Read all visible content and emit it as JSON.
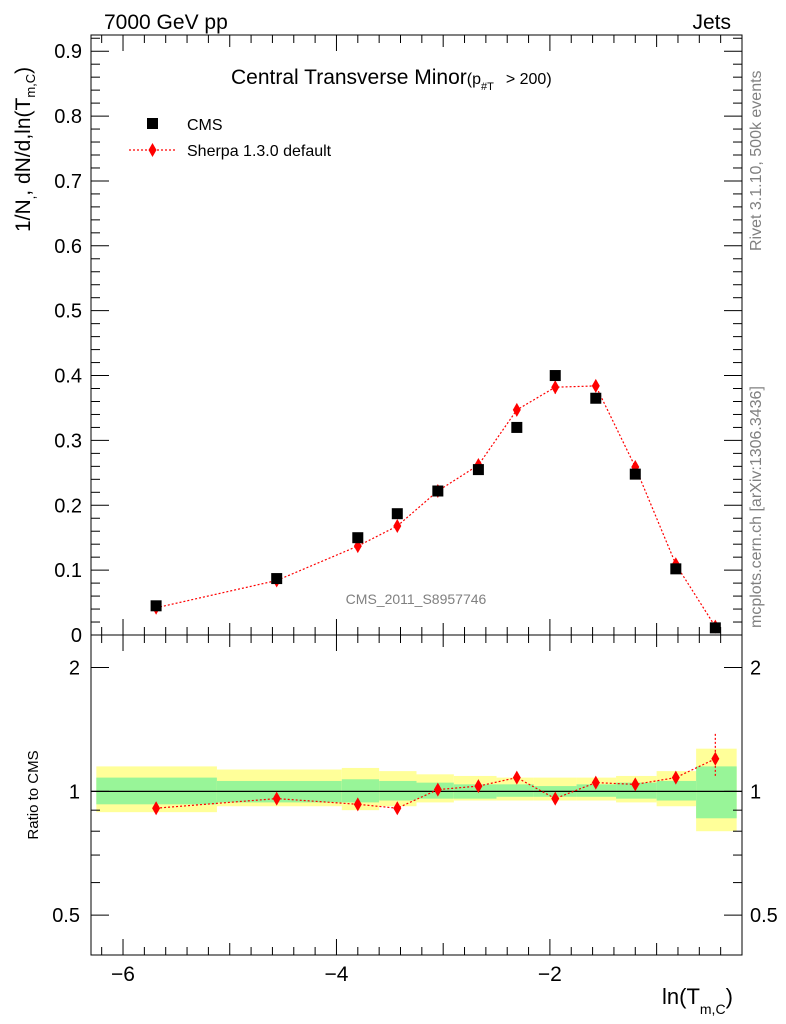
{
  "header": {
    "energy_label": "7000 GeV pp",
    "process_label": "Jets"
  },
  "side_text": {
    "rivet": "Rivet 3.1.10,  500k events",
    "mcplots": "mcplots.cern.ch [arXiv:1306.3436]"
  },
  "chart_data": {
    "type": "scatter",
    "title_main": "Central Transverse Minor",
    "title_cut_prefix": "(p",
    "title_cut_sub": "#T",
    "title_cut_suffix": "> 200)",
    "watermark": "CMS_2011_S8957746",
    "ylabel": {
      "main": "1/N",
      "sub1": ",",
      "mid": ", dN/d,ln(T",
      "sub2": "m,C",
      "end": ")"
    },
    "xlabel": {
      "main": "ln(T",
      "sub": "m,C",
      "end": ")"
    },
    "xlim": [
      -6.3,
      -0.2
    ],
    "ylim": [
      0,
      0.925
    ],
    "x_ticks": [
      {
        "v": -6,
        "label": "−6"
      },
      {
        "v": -4,
        "label": "−4"
      },
      {
        "v": -2,
        "label": "−2"
      }
    ],
    "y_ticks": [
      {
        "v": 0,
        "label": "0"
      },
      {
        "v": 0.1,
        "label": "0.1"
      },
      {
        "v": 0.2,
        "label": "0.2"
      },
      {
        "v": 0.3,
        "label": "0.3"
      },
      {
        "v": 0.4,
        "label": "0.4"
      },
      {
        "v": 0.5,
        "label": "0.5"
      },
      {
        "v": 0.6,
        "label": "0.6"
      },
      {
        "v": 0.7,
        "label": "0.7"
      },
      {
        "v": 0.8,
        "label": "0.8"
      },
      {
        "v": 0.9,
        "label": "0.9"
      }
    ],
    "series": [
      {
        "name": "CMS",
        "color": "#000000",
        "x": [
          -5.69,
          -4.56,
          -3.8,
          -3.43,
          -3.05,
          -2.67,
          -2.31,
          -1.95,
          -1.57,
          -1.2,
          -0.82,
          -0.45
        ],
        "y": [
          0.045,
          0.087,
          0.15,
          0.187,
          0.222,
          0.255,
          0.32,
          0.4,
          0.365,
          0.248,
          0.102,
          0.011
        ]
      },
      {
        "name": "Sherpa 1.3.0 default",
        "color": "#ff0000",
        "x": [
          -5.69,
          -4.56,
          -3.8,
          -3.43,
          -3.05,
          -2.67,
          -2.31,
          -1.95,
          -1.57,
          -1.2,
          -0.82,
          -0.45
        ],
        "y": [
          0.042,
          0.084,
          0.137,
          0.168,
          0.222,
          0.262,
          0.347,
          0.382,
          0.384,
          0.259,
          0.109,
          0.013
        ],
        "err": [
          0.002,
          0.002,
          0.005,
          0.005,
          0.004,
          0.006,
          0.009,
          0.01,
          0.008,
          0.006,
          0.006,
          0.006
        ]
      }
    ],
    "ratio": {
      "ylabel": "Ratio to CMS",
      "ylim_log": [
        0.4,
        2.4
      ],
      "y_ticks": [
        {
          "v": 0.5,
          "label": "0.5"
        },
        {
          "v": 1,
          "label": "1"
        },
        {
          "v": 2,
          "label": "2"
        }
      ],
      "bins": [
        {
          "lo": -6.25,
          "hi": -5.12,
          "inner": [
            0.93,
            1.08
          ],
          "outer": [
            0.89,
            1.15
          ]
        },
        {
          "lo": -5.12,
          "hi": -3.95,
          "inner": [
            0.94,
            1.06
          ],
          "outer": [
            0.92,
            1.13
          ]
        },
        {
          "lo": -3.95,
          "hi": -3.6,
          "inner": [
            0.94,
            1.07
          ],
          "outer": [
            0.9,
            1.14
          ]
        },
        {
          "lo": -3.6,
          "hi": -3.25,
          "inner": [
            0.95,
            1.06
          ],
          "outer": [
            0.92,
            1.12
          ]
        },
        {
          "lo": -3.25,
          "hi": -2.9,
          "inner": [
            0.96,
            1.05
          ],
          "outer": [
            0.94,
            1.1
          ]
        },
        {
          "lo": -2.9,
          "hi": -2.5,
          "inner": [
            0.96,
            1.04
          ],
          "outer": [
            0.95,
            1.09
          ]
        },
        {
          "lo": -2.5,
          "hi": -2.15,
          "inner": [
            0.97,
            1.04
          ],
          "outer": [
            0.95,
            1.08
          ]
        },
        {
          "lo": -2.15,
          "hi": -1.75,
          "inner": [
            0.97,
            1.03
          ],
          "outer": [
            0.95,
            1.08
          ]
        },
        {
          "lo": -1.75,
          "hi": -1.38,
          "inner": [
            0.97,
            1.04
          ],
          "outer": [
            0.95,
            1.08
          ]
        },
        {
          "lo": -1.38,
          "hi": -1.0,
          "inner": [
            0.96,
            1.05
          ],
          "outer": [
            0.94,
            1.09
          ]
        },
        {
          "lo": -1.0,
          "hi": -0.63,
          "inner": [
            0.95,
            1.06
          ],
          "outer": [
            0.92,
            1.12
          ]
        },
        {
          "lo": -0.63,
          "hi": -0.25,
          "inner": [
            0.86,
            1.15
          ],
          "outer": [
            0.8,
            1.27
          ]
        }
      ],
      "x": [
        -5.69,
        -4.56,
        -3.8,
        -3.43,
        -3.05,
        -2.67,
        -2.31,
        -1.95,
        -1.57,
        -1.2,
        -0.82,
        -0.45
      ],
      "values": [
        0.91,
        0.96,
        0.93,
        0.91,
        1.01,
        1.03,
        1.08,
        0.96,
        1.05,
        1.04,
        1.08,
        1.2
      ],
      "err_lo": [
        0.03,
        0.02,
        0.03,
        0.03,
        0.02,
        0.02,
        0.02,
        0.02,
        0.02,
        0.02,
        0.03,
        0.11
      ],
      "err_hi": [
        0.03,
        0.02,
        0.03,
        0.03,
        0.02,
        0.02,
        0.02,
        0.02,
        0.02,
        0.02,
        0.03,
        0.18
      ]
    }
  }
}
